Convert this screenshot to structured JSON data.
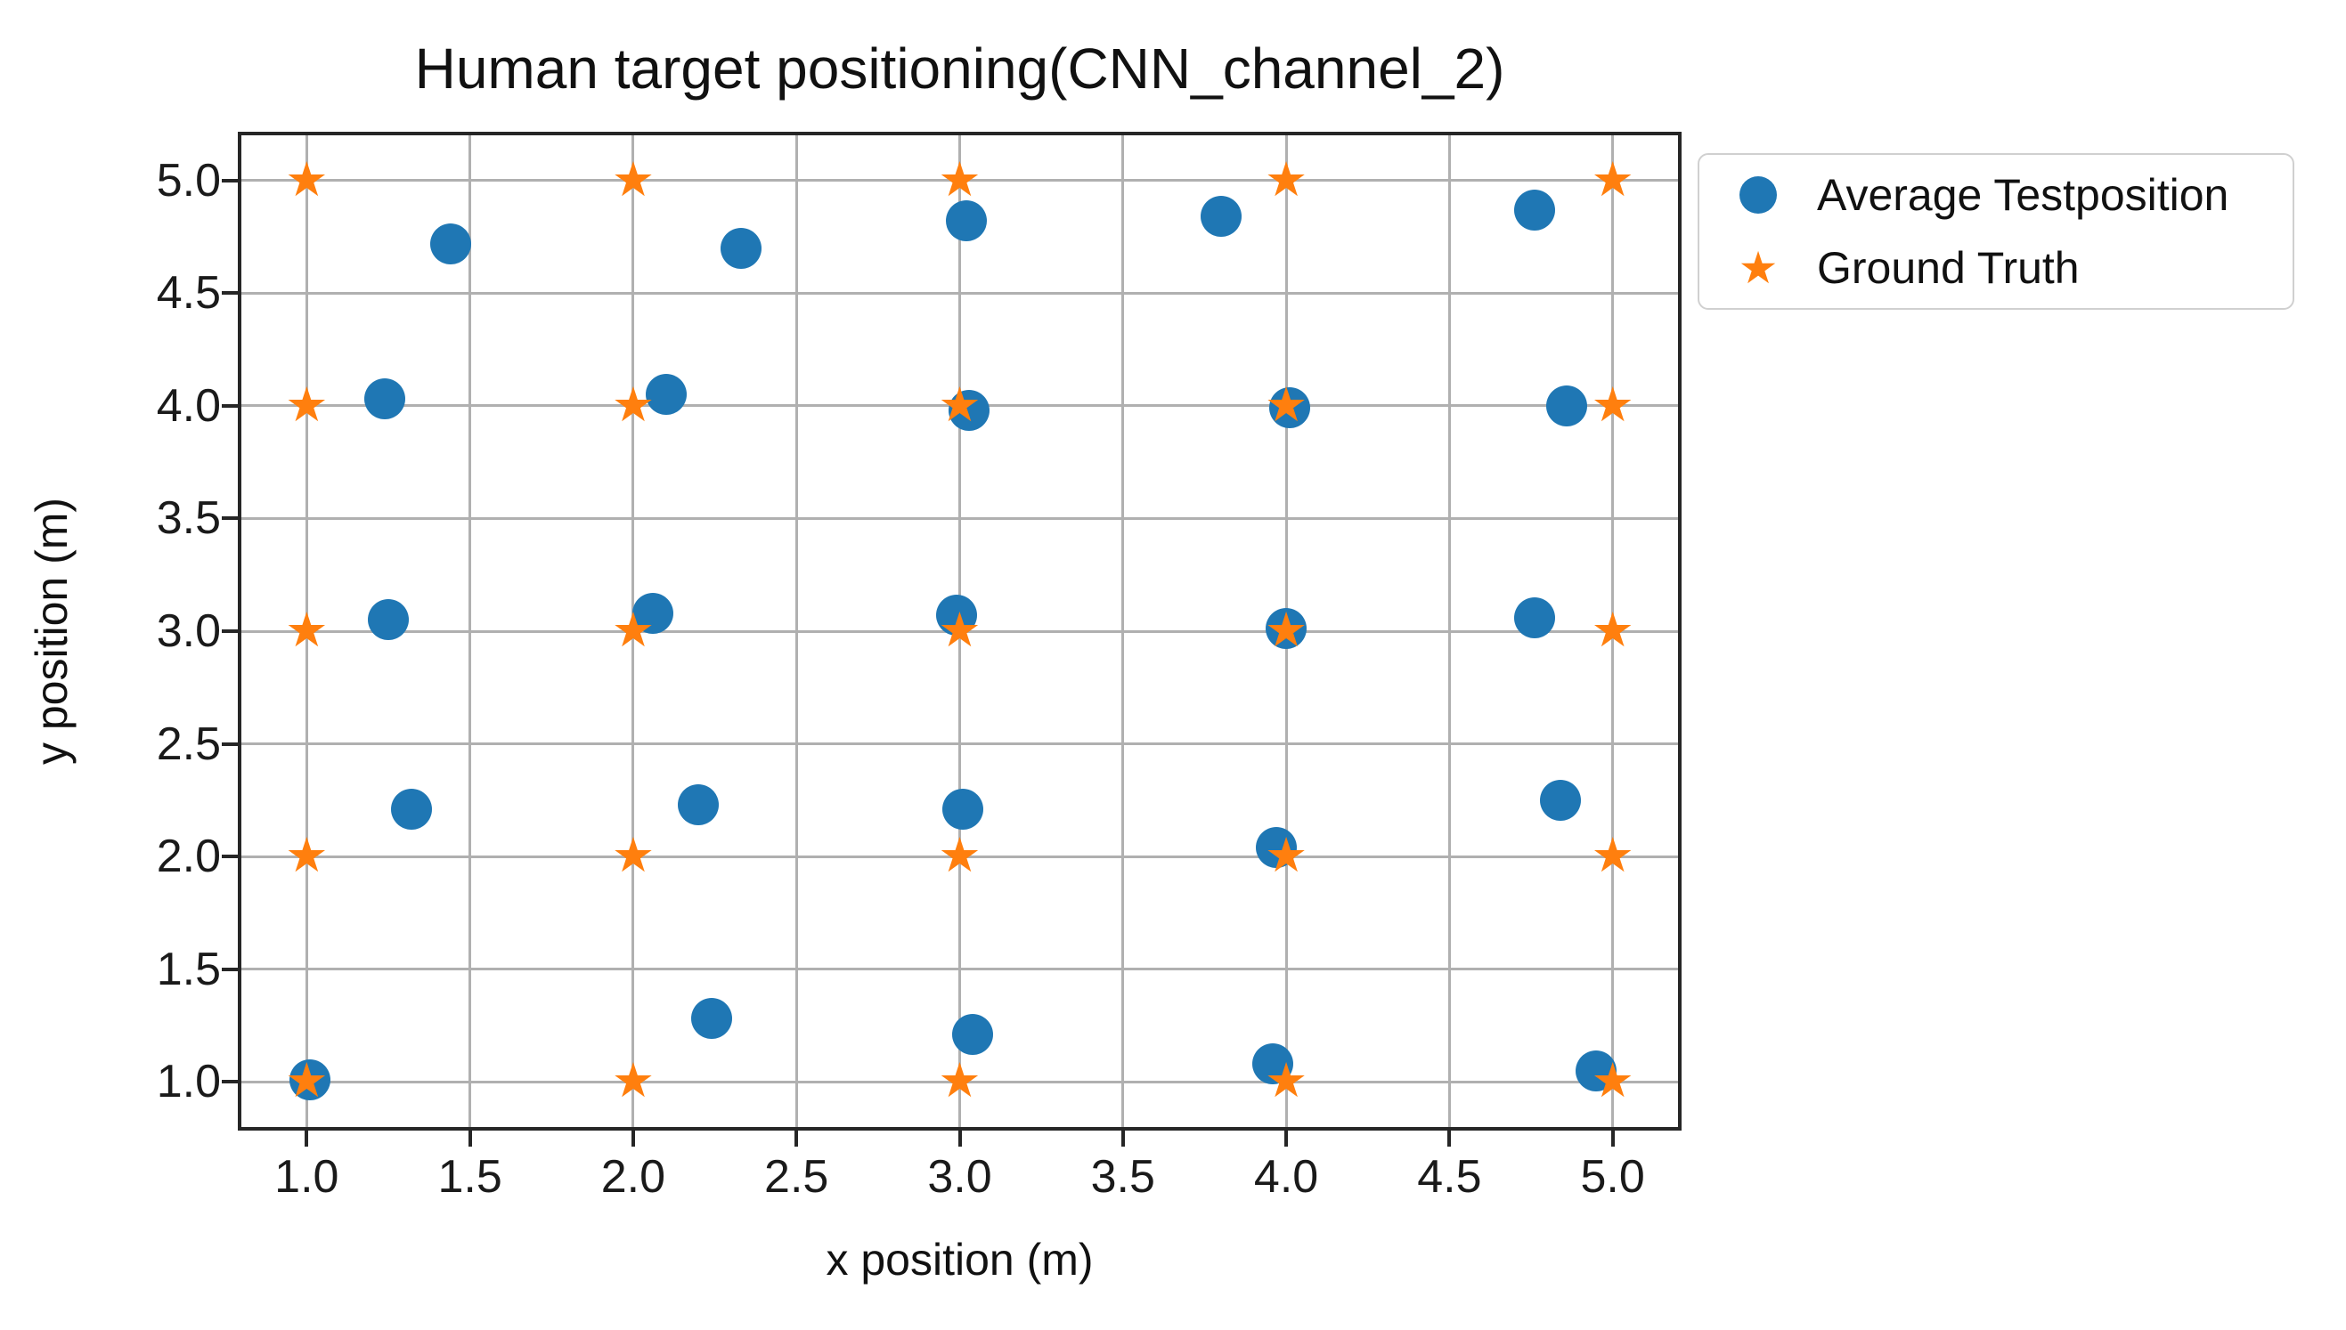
{
  "chart_data": {
    "type": "scatter",
    "title": "Human target positioning(CNN_channel_2)",
    "xlabel": "x position (m)",
    "ylabel": "y position (m)",
    "xlim": [
      0.8,
      5.2
    ],
    "ylim": [
      0.8,
      5.2
    ],
    "grid": true,
    "legend_position": "upper-right-outside",
    "colors": {
      "average_testposition": "#1f77b4",
      "ground_truth": "#ff7f0e",
      "gridline": "#b0b0b0",
      "frame": "#262626",
      "text": "#111111"
    },
    "icons": {
      "star_glyph": "★"
    },
    "xticks": [
      1.0,
      1.5,
      2.0,
      2.5,
      3.0,
      3.5,
      4.0,
      4.5,
      5.0
    ],
    "xtick_labels": [
      "1.0",
      "1.5",
      "2.0",
      "2.5",
      "3.0",
      "3.5",
      "4.0",
      "4.5",
      "5.0"
    ],
    "yticks": [
      1.0,
      1.5,
      2.0,
      2.5,
      3.0,
      3.5,
      4.0,
      4.5,
      5.0
    ],
    "ytick_labels": [
      "1.0",
      "1.5",
      "2.0",
      "2.5",
      "3.0",
      "3.5",
      "4.0",
      "4.5",
      "5.0"
    ],
    "series": [
      {
        "name": "Average Testposition",
        "marker": "circle",
        "color": "#1f77b4",
        "points": [
          [
            1.01,
            1.01
          ],
          [
            1.32,
            2.21
          ],
          [
            1.25,
            3.05
          ],
          [
            1.24,
            4.03
          ],
          [
            1.44,
            4.72
          ],
          [
            2.24,
            1.28
          ],
          [
            2.2,
            2.23
          ],
          [
            2.06,
            3.08
          ],
          [
            2.1,
            4.05
          ],
          [
            2.33,
            4.7
          ],
          [
            3.04,
            1.21
          ],
          [
            3.01,
            2.21
          ],
          [
            2.99,
            3.07
          ],
          [
            3.03,
            3.98
          ],
          [
            3.02,
            4.82
          ],
          [
            3.96,
            1.08
          ],
          [
            3.97,
            2.04
          ],
          [
            4.0,
            3.01
          ],
          [
            4.01,
            3.99
          ],
          [
            3.8,
            4.84
          ],
          [
            4.95,
            1.05
          ],
          [
            4.84,
            2.25
          ],
          [
            4.76,
            3.06
          ],
          [
            4.86,
            4.0
          ],
          [
            4.76,
            4.87
          ]
        ]
      },
      {
        "name": "Ground Truth",
        "marker": "star",
        "color": "#ff7f0e",
        "points": [
          [
            1,
            1
          ],
          [
            1,
            2
          ],
          [
            1,
            3
          ],
          [
            1,
            4
          ],
          [
            1,
            5
          ],
          [
            2,
            1
          ],
          [
            2,
            2
          ],
          [
            2,
            3
          ],
          [
            2,
            4
          ],
          [
            2,
            5
          ],
          [
            3,
            1
          ],
          [
            3,
            2
          ],
          [
            3,
            3
          ],
          [
            3,
            4
          ],
          [
            3,
            5
          ],
          [
            4,
            1
          ],
          [
            4,
            2
          ],
          [
            4,
            3
          ],
          [
            4,
            4
          ],
          [
            4,
            5
          ],
          [
            5,
            1
          ],
          [
            5,
            2
          ],
          [
            5,
            3
          ],
          [
            5,
            4
          ],
          [
            5,
            5
          ]
        ]
      }
    ]
  }
}
